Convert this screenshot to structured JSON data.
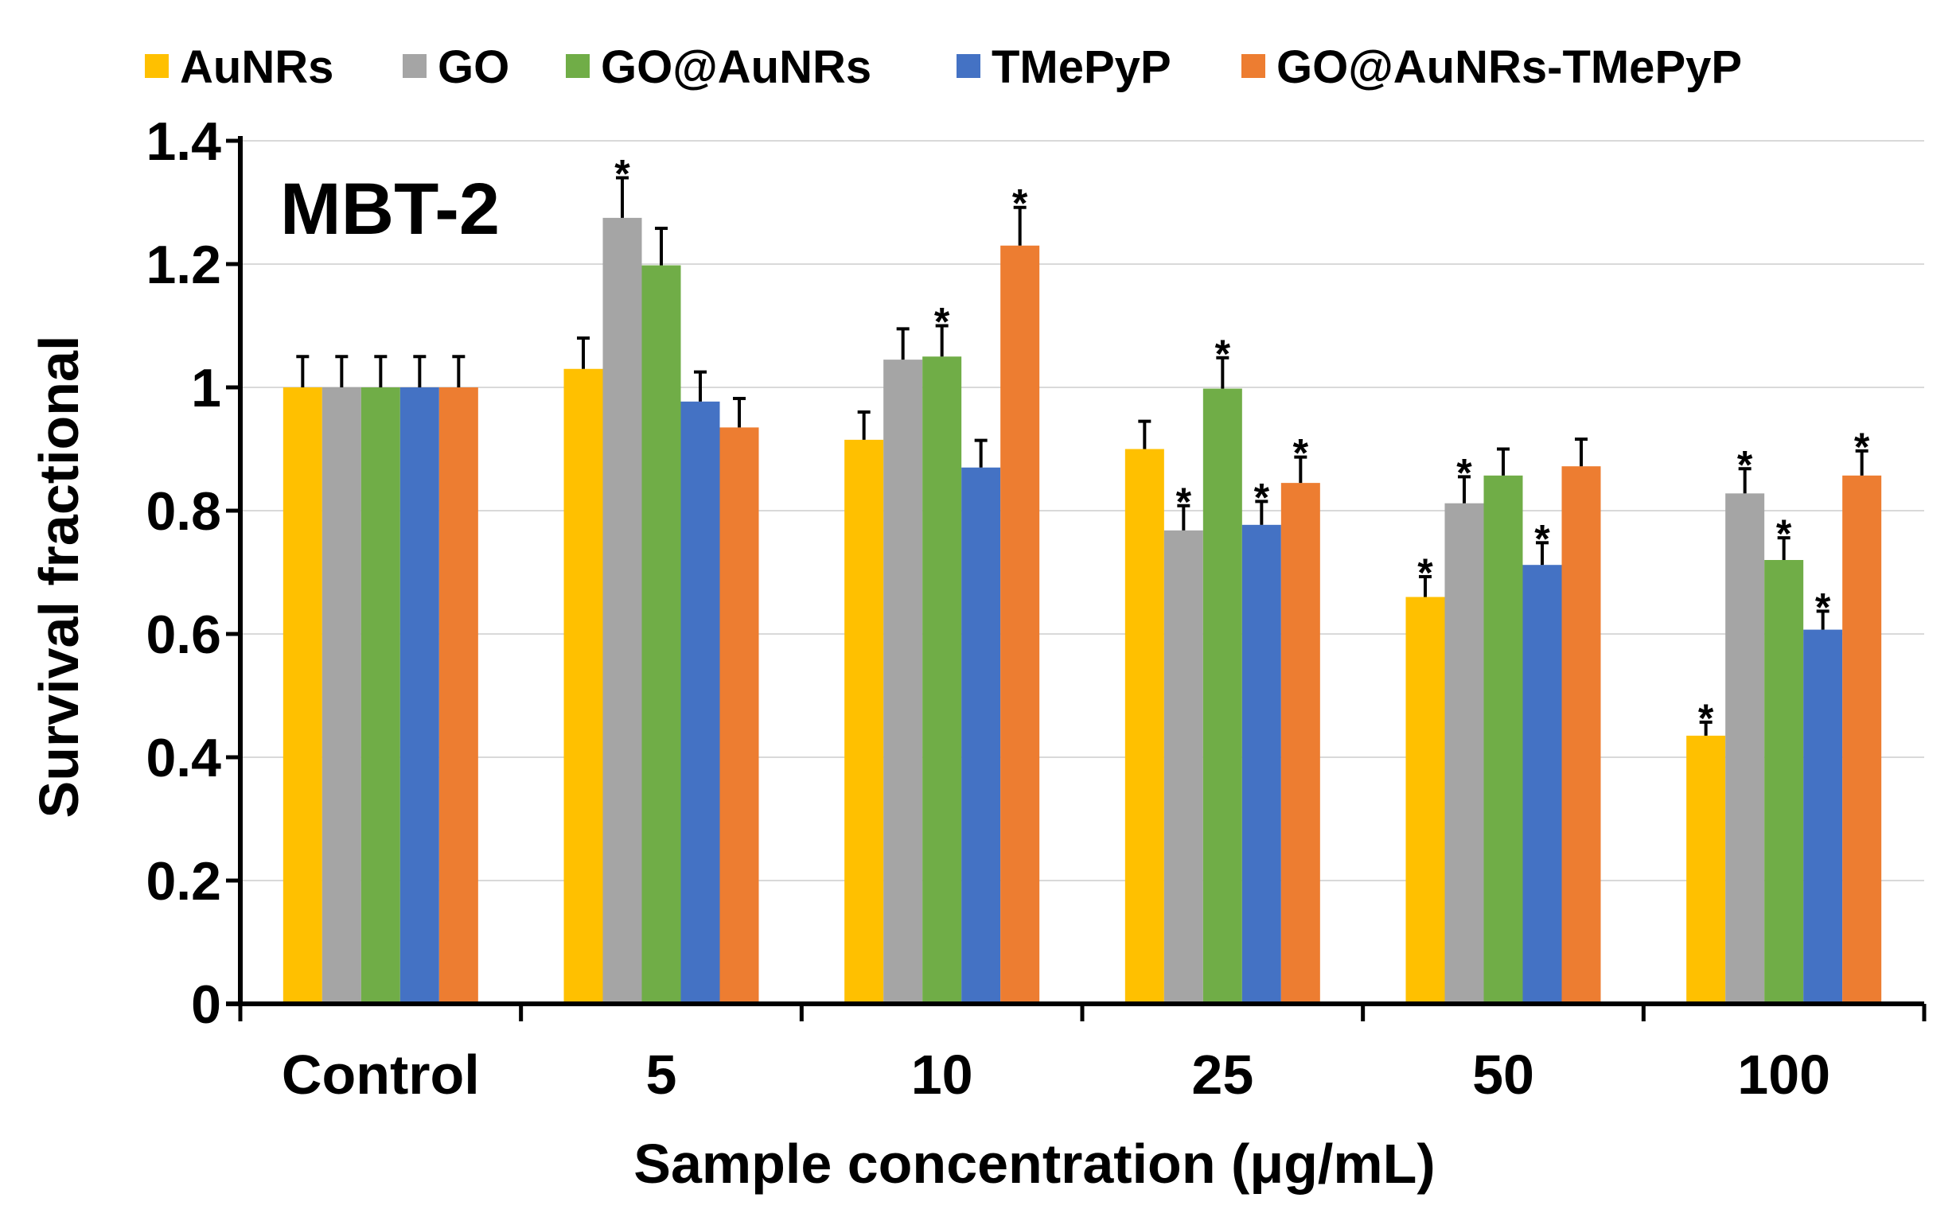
{
  "chart_data": {
    "type": "bar",
    "title": "",
    "panel_label": "MBT-2",
    "xlabel": "Sample concentration (μg/mL)",
    "ylabel": "Survival fractional",
    "ylim": [
      0,
      1.4
    ],
    "yticks": [
      0,
      0.2,
      0.4,
      0.6,
      0.8,
      1,
      1.2,
      1.4
    ],
    "ytick_labels": [
      "0",
      "0.2",
      "0.4",
      "0.6",
      "0.8",
      "1",
      "1.2",
      "1.4"
    ],
    "grid": true,
    "legend_position": "top",
    "categories": [
      "Control",
      "5",
      "10",
      "25",
      "50",
      "100"
    ],
    "significance_marker": "*",
    "series": [
      {
        "name": "AuNRs",
        "color": "#FFC000",
        "values": [
          1.0,
          1.03,
          0.915,
          0.9,
          0.66,
          0.435
        ],
        "errors": [
          0.05,
          0.05,
          0.045,
          0.045,
          0.033,
          0.022
        ],
        "significant": [
          false,
          false,
          false,
          false,
          true,
          true
        ]
      },
      {
        "name": "GO",
        "color": "#A5A5A5",
        "values": [
          1.0,
          1.275,
          1.045,
          0.768,
          0.812,
          0.828
        ],
        "errors": [
          0.05,
          0.065,
          0.05,
          0.04,
          0.043,
          0.04
        ],
        "significant": [
          false,
          true,
          false,
          true,
          true,
          true
        ]
      },
      {
        "name": "GO@AuNRs",
        "color": "#70AD47",
        "values": [
          1.0,
          1.198,
          1.05,
          0.998,
          0.857,
          0.72
        ],
        "errors": [
          0.05,
          0.06,
          0.05,
          0.05,
          0.043,
          0.036
        ],
        "significant": [
          false,
          false,
          true,
          true,
          false,
          true
        ]
      },
      {
        "name": "TMePyP",
        "color": "#4472C4",
        "values": [
          1.0,
          0.977,
          0.87,
          0.777,
          0.712,
          0.607
        ],
        "errors": [
          0.05,
          0.048,
          0.044,
          0.038,
          0.036,
          0.03
        ],
        "significant": [
          false,
          false,
          false,
          true,
          true,
          true
        ]
      },
      {
        "name": "GO@AuNRs-TMePyP",
        "color": "#ED7D31",
        "values": [
          1.0,
          0.935,
          1.23,
          0.845,
          0.872,
          0.857
        ],
        "errors": [
          0.05,
          0.047,
          0.062,
          0.042,
          0.044,
          0.04
        ],
        "significant": [
          false,
          false,
          true,
          true,
          false,
          true
        ]
      }
    ]
  }
}
